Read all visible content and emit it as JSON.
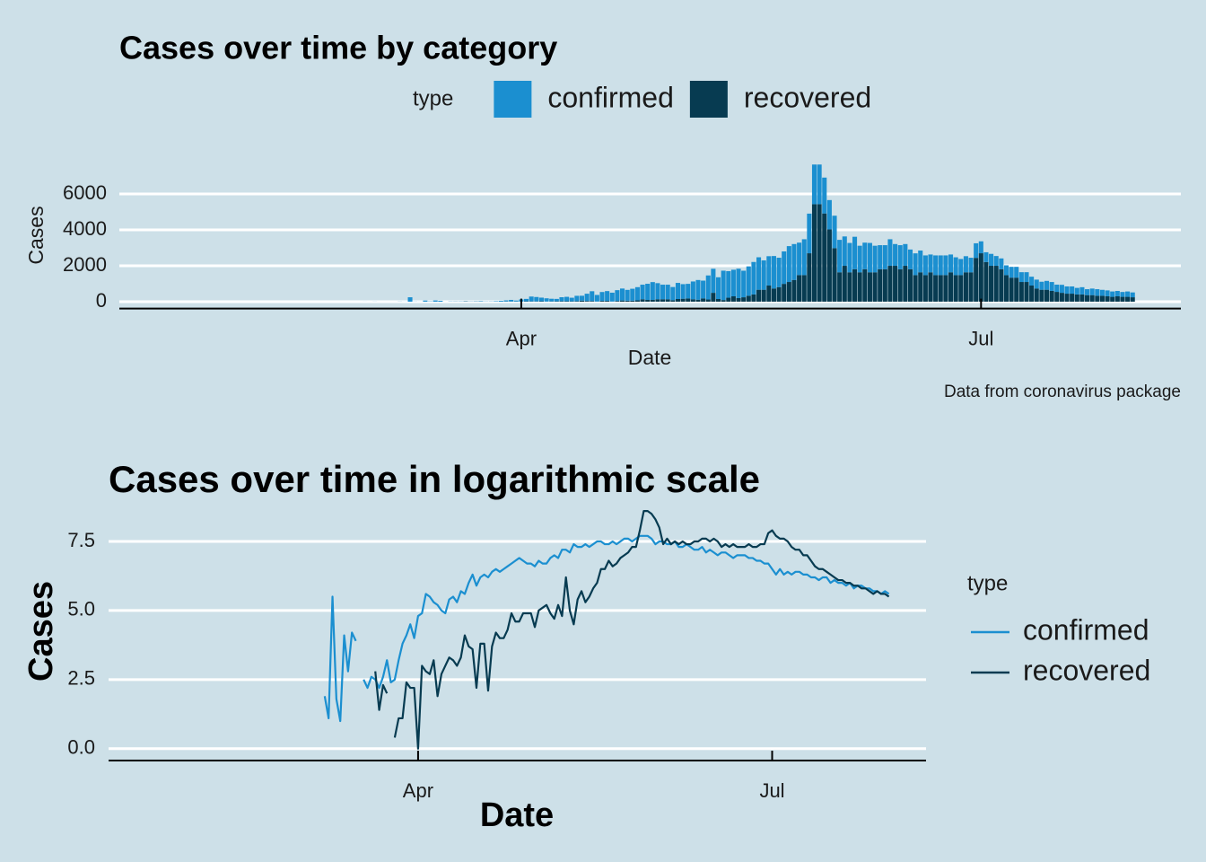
{
  "chart_data": [
    {
      "type": "bar",
      "stacked": true,
      "title": "Cases over time by category",
      "x_label": "Date",
      "y_label": "Cases",
      "caption": "Data from coronavirus package",
      "legend_title": "type",
      "legend": "top",
      "grid": true,
      "xlim": [
        12.45,
        222.55
      ],
      "xticks": [
        {
          "value": 92,
          "label": "Apr"
        },
        {
          "value": 183,
          "label": "Jul"
        }
      ],
      "ylim": [
        -382,
        8022
      ],
      "yticks": [
        0,
        2000,
        4000,
        6000
      ],
      "x": [
        61,
        62,
        63,
        64,
        65,
        66,
        67,
        68,
        69,
        70,
        71,
        72,
        73,
        74,
        75,
        76,
        77,
        78,
        79,
        80,
        81,
        82,
        83,
        84,
        85,
        86,
        87,
        88,
        89,
        90,
        91,
        92,
        93,
        94,
        95,
        96,
        97,
        98,
        99,
        100,
        101,
        102,
        103,
        104,
        105,
        106,
        107,
        108,
        109,
        110,
        111,
        112,
        113,
        114,
        115,
        116,
        117,
        118,
        119,
        120,
        121,
        122,
        123,
        124,
        125,
        126,
        127,
        128,
        129,
        130,
        131,
        132,
        133,
        134,
        135,
        136,
        137,
        138,
        139,
        140,
        141,
        142,
        143,
        144,
        145,
        146,
        147,
        148,
        149,
        150,
        151,
        152,
        153,
        154,
        155,
        156,
        157,
        158,
        159,
        160,
        161,
        162,
        163,
        164,
        165,
        166,
        167,
        168,
        169,
        170,
        171,
        172,
        173,
        174,
        175,
        176,
        177,
        178,
        179,
        180,
        181,
        182,
        183,
        184,
        185,
        186,
        187,
        188,
        189,
        190,
        191,
        192,
        193,
        194,
        195,
        196,
        197,
        198,
        199,
        200,
        201,
        202,
        203,
        204,
        205,
        206,
        207,
        208,
        209,
        210,
        211,
        212,
        213
      ],
      "series": [
        {
          "name": "confirmed",
          "color": "#1b8fd0",
          "values": [
            2,
            0,
            4,
            0,
            0,
            0,
            0,
            7,
            3,
            245,
            6,
            3,
            60,
            16,
            67,
            49,
            0,
            12,
            9,
            13,
            12,
            9,
            13,
            25,
            11,
            12,
            25,
            45,
            60,
            90,
            55,
            122,
            134,
            270,
            245,
            200,
            181,
            148,
            134,
            221,
            245,
            200,
            299,
            270,
            403,
            545,
            365,
            493,
            545,
            493,
            602,
            665,
            602,
            665,
            735,
            812,
            898,
            992,
            898,
            812,
            812,
            735,
            898,
            812,
            812,
            992,
            1097,
            992,
            1339,
            1339,
            1212,
            1636,
            1480,
            1480,
            1636,
            1480,
            1636,
            1808,
            1808,
            1636,
            1636,
            1808,
            1636,
            1808,
            1998,
            1998,
            1808,
            1998,
            2208,
            2208,
            2208,
            1998,
            1636,
            1808,
            1808,
            1636,
            1636,
            1808,
            1480,
            1480,
            1636,
            1480,
            1339,
            1339,
            1480,
            1212,
            1339,
            1212,
            1097,
            1212,
            1212,
            1097,
            992,
            1097,
            1097,
            1097,
            992,
            992,
            898,
            898,
            812,
            812,
            665,
            545,
            665,
            545,
            602,
            545,
            602,
            602,
            545,
            545,
            493,
            493,
            446,
            493,
            493,
            403,
            446,
            403,
            403,
            365,
            403,
            330,
            365,
            365,
            330,
            330,
            299,
            299,
            270,
            299,
            270
          ]
        },
        {
          "name": "recovered",
          "color": "#073b51",
          "values": [
            0,
            0,
            0,
            0,
            0,
            0,
            0,
            0,
            0,
            0,
            0,
            0,
            2,
            0,
            0,
            0,
            0,
            0,
            5,
            0,
            16,
            4,
            10,
            7,
            0,
            1,
            3,
            3,
            11,
            9,
            9,
            1,
            20,
            16,
            15,
            25,
            7,
            15,
            20,
            27,
            25,
            20,
            27,
            60,
            40,
            37,
            9,
            45,
            45,
            8,
            40,
            67,
            55,
            55,
            74,
            134,
            99,
            99,
            134,
            134,
            134,
            81,
            148,
            164,
            181,
            134,
            110,
            181,
            122,
            493,
            148,
            90,
            221,
            299,
            200,
            245,
            330,
            403,
            665,
            665,
            898,
            735,
            812,
            992,
            1097,
            1212,
            1480,
            1480,
            2697,
            5432,
            5432,
            4915,
            4024,
            2981,
            1636,
            1998,
            1636,
            1808,
            1636,
            1808,
            1636,
            1636,
            1808,
            1808,
            1998,
            1998,
            1808,
            1998,
            1808,
            1480,
            1636,
            1480,
            1636,
            1480,
            1480,
            1480,
            1636,
            1480,
            1480,
            1636,
            1636,
            2440,
            2697,
            2208,
            1998,
            1998,
            1808,
            1480,
            1339,
            1339,
            1097,
            1097,
            898,
            735,
            665,
            665,
            602,
            545,
            493,
            446,
            446,
            403,
            403,
            365,
            365,
            330,
            330,
            299,
            270,
            299,
            270,
            270,
            245
          ]
        }
      ]
    },
    {
      "type": "line",
      "title": "Cases over time in logarithmic scale",
      "x_label": "Date",
      "y_label": "Cases",
      "legend_title": "type",
      "legend": "right",
      "grid": true,
      "xlim": [
        12.45,
        222.55
      ],
      "xticks": [
        {
          "value": 92,
          "label": "Apr"
        },
        {
          "value": 183,
          "label": "Jul"
        }
      ],
      "ylim": [
        -0.43,
        9.03
      ],
      "yticks": [
        {
          "value": 0,
          "label": "0.0"
        },
        2.5,
        {
          "value": 5,
          "label": "5.0"
        },
        7.5
      ],
      "x": [
        61,
        62,
        63,
        64,
        65,
        66,
        67,
        68,
        69,
        70,
        71,
        72,
        73,
        74,
        75,
        76,
        77,
        78,
        79,
        80,
        81,
        82,
        83,
        84,
        85,
        86,
        87,
        88,
        89,
        90,
        91,
        92,
        93,
        94,
        95,
        96,
        97,
        98,
        99,
        100,
        101,
        102,
        103,
        104,
        105,
        106,
        107,
        108,
        109,
        110,
        111,
        112,
        113,
        114,
        115,
        116,
        117,
        118,
        119,
        120,
        121,
        122,
        123,
        124,
        125,
        126,
        127,
        128,
        129,
        130,
        131,
        132,
        133,
        134,
        135,
        136,
        137,
        138,
        139,
        140,
        141,
        142,
        143,
        144,
        145,
        146,
        147,
        148,
        149,
        150,
        151,
        152,
        153,
        154,
        155,
        156,
        157,
        158,
        159,
        160,
        161,
        162,
        163,
        164,
        165,
        166,
        167,
        168,
        169,
        170,
        171,
        172,
        173,
        174,
        175,
        176,
        177,
        178,
        179,
        180,
        181,
        182,
        183,
        184,
        185,
        186,
        187,
        188,
        189,
        190,
        191,
        192,
        193,
        194,
        195,
        196,
        197,
        198,
        199,
        200,
        201,
        202,
        203,
        204,
        205,
        206,
        207,
        208,
        209,
        210,
        211,
        212,
        213
      ],
      "series": [
        {
          "name": "confirmed",
          "color": "#1b8fd0",
          "values": [
            0.7,
            null,
            1.4,
            null,
            null,
            null,
            null,
            1.9,
            1.1,
            5.5,
            1.8,
            1.0,
            4.1,
            2.8,
            4.2,
            3.9,
            null,
            2.5,
            2.2,
            2.6,
            2.5,
            2.2,
            2.6,
            3.2,
            2.4,
            2.5,
            3.2,
            3.8,
            4.1,
            4.5,
            4.0,
            4.8,
            4.9,
            5.6,
            5.5,
            5.3,
            5.2,
            5.0,
            4.9,
            5.4,
            5.5,
            5.3,
            5.7,
            5.6,
            6.0,
            6.3,
            5.9,
            6.2,
            6.3,
            6.2,
            6.4,
            6.5,
            6.4,
            6.5,
            6.6,
            6.7,
            6.8,
            6.9,
            6.8,
            6.7,
            6.7,
            6.6,
            6.8,
            6.7,
            6.7,
            6.9,
            7.0,
            6.9,
            7.2,
            7.2,
            7.1,
            7.4,
            7.3,
            7.3,
            7.4,
            7.3,
            7.4,
            7.5,
            7.5,
            7.4,
            7.4,
            7.5,
            7.4,
            7.5,
            7.6,
            7.6,
            7.5,
            7.6,
            7.7,
            7.7,
            7.7,
            7.6,
            7.4,
            7.5,
            7.5,
            7.4,
            7.4,
            7.5,
            7.3,
            7.3,
            7.4,
            7.3,
            7.2,
            7.2,
            7.3,
            7.1,
            7.2,
            7.1,
            7.0,
            7.1,
            7.1,
            7.0,
            6.9,
            7.0,
            7.0,
            7.0,
            6.9,
            6.9,
            6.8,
            6.8,
            6.7,
            6.7,
            6.5,
            6.3,
            6.5,
            6.3,
            6.4,
            6.3,
            6.4,
            6.4,
            6.3,
            6.3,
            6.2,
            6.2,
            6.1,
            6.2,
            6.2,
            6.0,
            6.1,
            6.0,
            6.0,
            5.9,
            6.0,
            5.8,
            5.9,
            5.9,
            5.8,
            5.8,
            5.7,
            5.7,
            5.6,
            5.7,
            5.6
          ]
        },
        {
          "name": "recovered",
          "color": "#073b51",
          "values": [
            null,
            null,
            null,
            null,
            null,
            null,
            null,
            null,
            null,
            null,
            null,
            null,
            0.7,
            null,
            null,
            null,
            null,
            null,
            1.6,
            null,
            2.8,
            1.4,
            2.3,
            2.0,
            null,
            0.4,
            1.1,
            1.1,
            2.4,
            2.2,
            2.2,
            0.0,
            3.0,
            2.8,
            2.7,
            3.2,
            1.9,
            2.7,
            3.0,
            3.3,
            3.2,
            3.0,
            3.3,
            4.1,
            3.7,
            3.6,
            2.2,
            3.8,
            3.8,
            2.1,
            3.7,
            4.2,
            4.0,
            4.0,
            4.3,
            4.9,
            4.6,
            4.6,
            4.9,
            4.9,
            4.9,
            4.4,
            5.0,
            5.1,
            5.2,
            4.9,
            4.7,
            5.2,
            4.8,
            6.2,
            5.0,
            4.5,
            5.4,
            5.7,
            5.3,
            5.5,
            5.8,
            6.0,
            6.5,
            6.5,
            6.8,
            6.6,
            6.7,
            6.9,
            7.0,
            7.1,
            7.3,
            7.3,
            7.9,
            8.6,
            8.6,
            8.5,
            8.3,
            8.0,
            7.4,
            7.6,
            7.4,
            7.5,
            7.4,
            7.5,
            7.4,
            7.4,
            7.5,
            7.5,
            7.6,
            7.6,
            7.5,
            7.6,
            7.5,
            7.3,
            7.4,
            7.3,
            7.4,
            7.3,
            7.3,
            7.3,
            7.4,
            7.3,
            7.3,
            7.4,
            7.4,
            7.8,
            7.9,
            7.7,
            7.6,
            7.6,
            7.5,
            7.3,
            7.2,
            7.2,
            7.0,
            7.0,
            6.8,
            6.6,
            6.5,
            6.5,
            6.4,
            6.3,
            6.2,
            6.1,
            6.1,
            6.0,
            6.0,
            5.9,
            5.9,
            5.8,
            5.8,
            5.7,
            5.6,
            5.7,
            5.6,
            5.6,
            5.5
          ]
        }
      ]
    }
  ]
}
